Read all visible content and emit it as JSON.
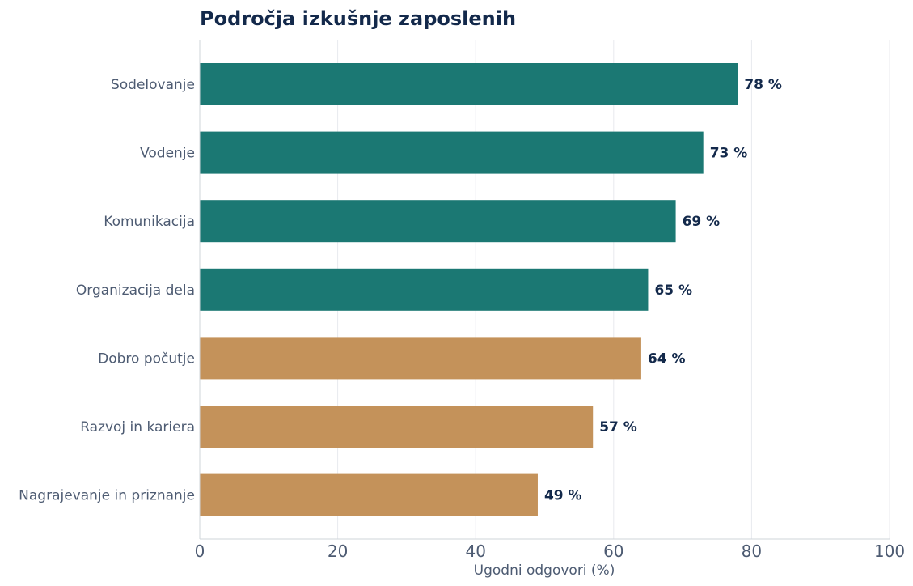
{
  "chart_data": {
    "type": "bar",
    "orientation": "horizontal",
    "title": "Področja izkušnje zaposlenih",
    "xlabel": "Ugodni odgovori (%)",
    "ylabel": "",
    "xlim": [
      0,
      100
    ],
    "x_ticks": [
      "0",
      "20",
      "40",
      "60",
      "80",
      "100"
    ],
    "grid": "vertical",
    "categories": [
      "Sodelovanje",
      "Vodenje",
      "Komunikacija",
      "Organizacija dela",
      "Dobro počutje",
      "Razvoj in kariera",
      "Nagrajevanje in priznanje"
    ],
    "values": [
      78,
      73,
      69,
      65,
      64,
      57,
      49
    ],
    "value_labels": [
      "78 %",
      "73 %",
      "69 %",
      "65 %",
      "64 %",
      "57 %",
      "49 %"
    ],
    "bar_colors": [
      "#1b7873",
      "#1b7873",
      "#1b7873",
      "#1b7873",
      "#c4925a",
      "#c4925a",
      "#c4925a"
    ]
  },
  "colors": {
    "title": "#13294b",
    "label": "#4d5b72",
    "value_label": "#13294b",
    "grid": "#e8eaee",
    "axis": "#cfd4da"
  }
}
